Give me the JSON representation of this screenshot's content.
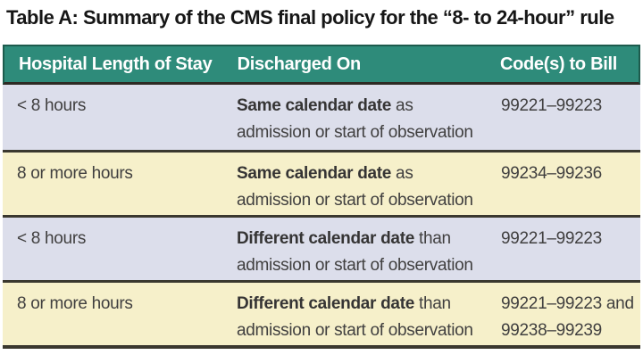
{
  "title": {
    "prefix": "Table A:",
    "text": " Summary of the CMS final policy for the “8- to 24-hour” rule"
  },
  "table": {
    "columns": [
      "Hospital Length of Stay",
      "Discharged On",
      "Code(s) to Bill"
    ],
    "rows": [
      {
        "stay": "< 8 hours",
        "discharged_bold": "Same calendar date",
        "discharged_rest": " as admission or start of observation",
        "codes": "99221–99223"
      },
      {
        "stay": "8 or more hours",
        "discharged_bold": "Same calendar date",
        "discharged_rest": " as admission or start of observation",
        "codes": "99234–99236"
      },
      {
        "stay": "< 8 hours",
        "discharged_bold": "Different calendar date",
        "discharged_rest": " than admission or start of observation",
        "codes": "99221–99223"
      },
      {
        "stay": "8 or more hours",
        "discharged_bold": "Different calendar date",
        "discharged_rest": " than admission or start of observation",
        "codes": "99221–99223 and 99238–99239"
      }
    ]
  },
  "colors": {
    "header_bg": "#2e8b7a",
    "header_border": "#1d5b4d",
    "header_text": "#ffffff",
    "row_lavender": "#dcdeeb",
    "row_cream": "#f6f0ca",
    "separator": "#3a382f",
    "body_text": "#403f3f",
    "title_text": "#161616"
  }
}
